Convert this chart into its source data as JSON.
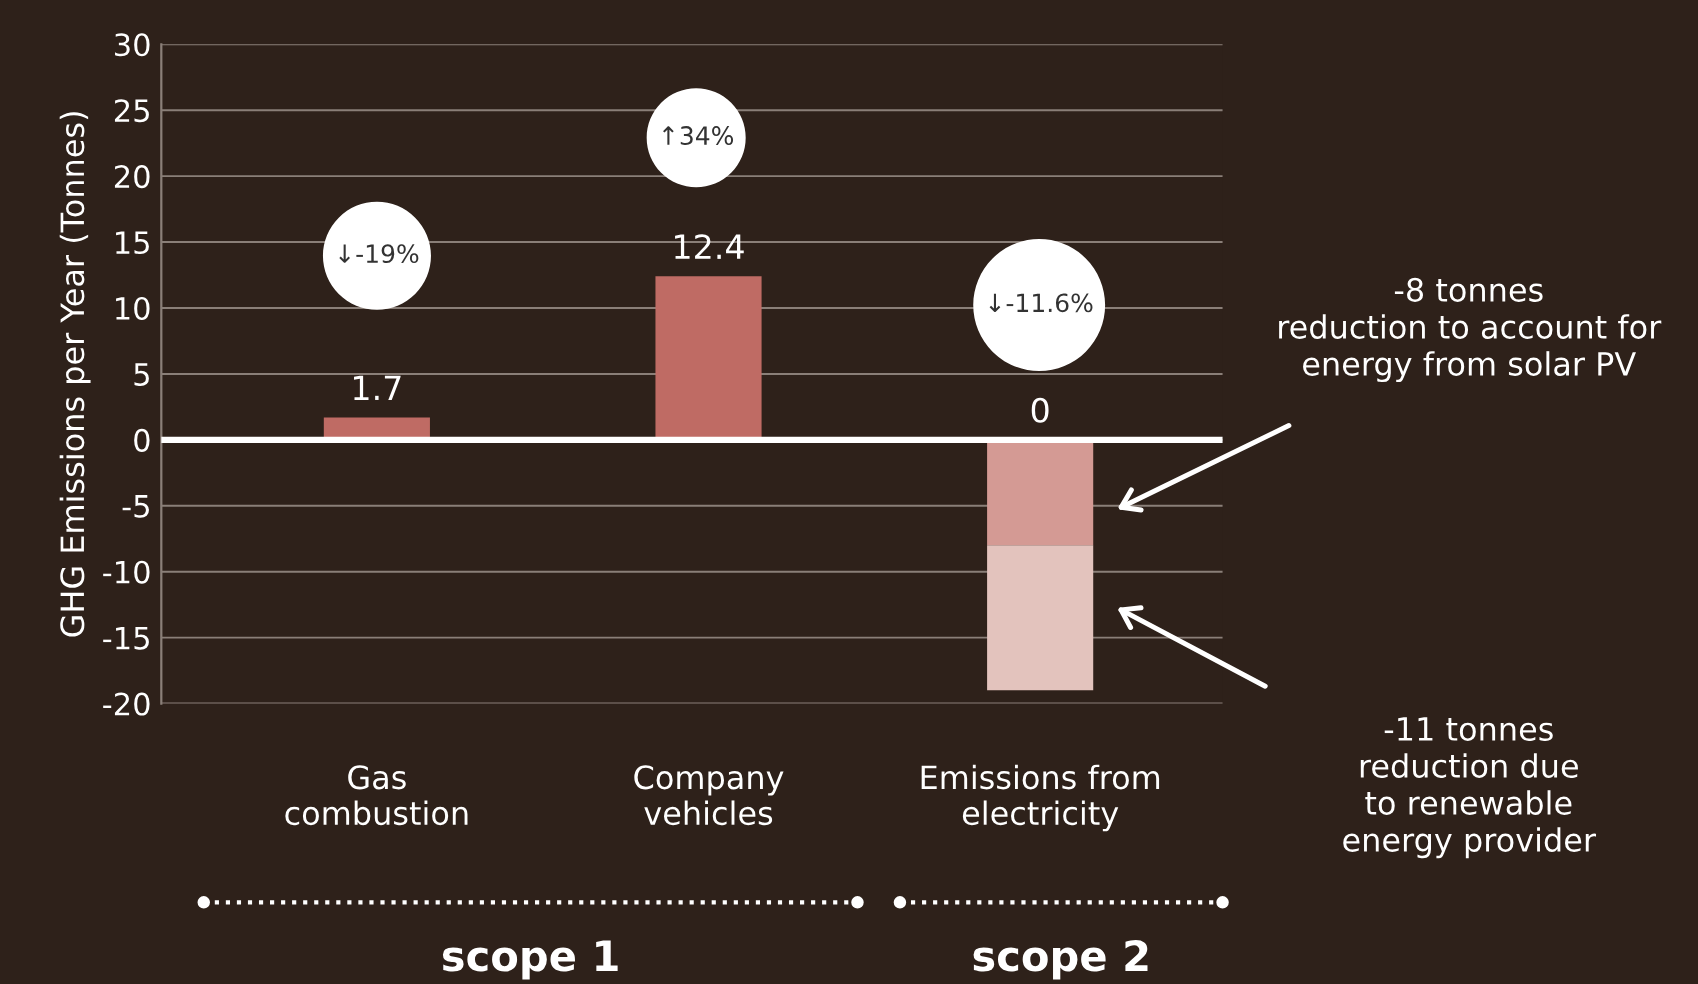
{
  "chart_data": {
    "type": "bar",
    "ylabel": "GHG Emissions per Year (Tonnes)",
    "categories": [
      "Gas\ncombustion",
      "Company\nvehicles",
      "Emissions from\nelectricity"
    ],
    "stacked": true,
    "series": [
      {
        "color": "#bf6b64",
        "values": [
          1.7,
          12.4,
          0
        ],
        "value_labels": [
          "1.7",
          "12.4",
          "0"
        ]
      },
      {
        "color": "#d49a94",
        "values": [
          null,
          null,
          -8
        ]
      },
      {
        "color": "#e3c3bd",
        "values": [
          null,
          null,
          -11
        ]
      }
    ],
    "ylim": [
      -20,
      30
    ],
    "yticks": [
      -20,
      -15,
      -10,
      -5,
      0,
      5,
      10,
      15,
      20,
      25,
      30
    ],
    "grid": "y",
    "annotations": [
      "↓-19%",
      "↑34%",
      "↓-11.6%",
      "-8 tonnes\nreduction to account for\nenergy from solar PV",
      "-11 tonnes\nreduction due\nto renewable\nenergy provider",
      "scope 1",
      "scope 2"
    ]
  }
}
